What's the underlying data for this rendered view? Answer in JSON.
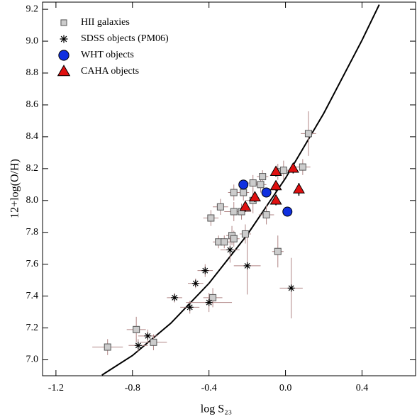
{
  "chart_data": {
    "type": "scatter",
    "xlabel": "log S₂₃",
    "ylabel": "12+log(O/H)",
    "xlim": [
      -1.27,
      0.68
    ],
    "ylim": [
      6.9,
      9.245
    ],
    "xticks": [
      -1.2,
      -0.8,
      -0.4,
      {
        "value": 0,
        "label": "0.0"
      },
      0.4
    ],
    "yticks": [
      {
        "value": 7,
        "label": "7.0"
      },
      7.2,
      7.4,
      7.6,
      7.8,
      {
        "value": 8,
        "label": "8.0"
      },
      8.2,
      8.4,
      8.6,
      8.8,
      {
        "value": 9,
        "label": "9.0"
      },
      9.2
    ],
    "legend": "upper left",
    "error_color": "#b08585",
    "curve": {
      "color": "#000000",
      "x": [
        -0.96,
        -0.8,
        -0.6,
        -0.4,
        -0.2,
        0,
        0.2,
        0.4,
        0.49
      ],
      "y": [
        6.904,
        7.027,
        7.229,
        7.48,
        7.785,
        8.14,
        8.547,
        9.006,
        9.229
      ]
    },
    "series": [
      {
        "name": "HII galaxies",
        "marker": "square",
        "color": "#cccccc",
        "x": [
          -0.93,
          -0.78,
          -0.69,
          -0.38,
          -0.39,
          -0.34,
          -0.35,
          -0.32,
          -0.27,
          -0.27,
          -0.28,
          -0.27,
          -0.22,
          -0.23,
          -0.21,
          -0.17,
          -0.17,
          -0.13,
          -0.12,
          -0.1,
          -0.04,
          -0.04,
          -0.01,
          0.09,
          0.12
        ],
        "y": [
          7.08,
          7.19,
          7.11,
          7.39,
          7.89,
          7.96,
          7.74,
          7.74,
          8.05,
          7.93,
          7.78,
          7.76,
          8.05,
          7.93,
          7.79,
          8.11,
          8.0,
          8.1,
          8.15,
          7.91,
          8.18,
          7.68,
          8.19,
          8.21,
          8.42
        ],
        "xerr": [
          0.08,
          0.05,
          0.07,
          0.05,
          0.04,
          0.04,
          0.03,
          0.03,
          0.03,
          0.05,
          0.03,
          0.03,
          0.03,
          0.05,
          0.03,
          0.03,
          0.04,
          0.03,
          0.03,
          0.04,
          0.03,
          0.03,
          0.03,
          0.04,
          0.04
        ],
        "yerr": [
          0.05,
          0.08,
          0.05,
          0.06,
          0.05,
          0.05,
          0.04,
          0.04,
          0.05,
          0.06,
          0.06,
          0.05,
          0.05,
          0.05,
          0.06,
          0.05,
          0.08,
          0.05,
          0.04,
          0.06,
          0.05,
          0.1,
          0.06,
          0.05,
          0.14
        ]
      },
      {
        "name": "SDSS objects (PM06)",
        "marker": "star",
        "color": "#000000",
        "x": [
          -0.77,
          -0.72,
          -0.58,
          -0.5,
          -0.47,
          -0.42,
          -0.4,
          -0.29,
          -0.2,
          0.03
        ],
        "y": [
          7.09,
          7.15,
          7.39,
          7.33,
          7.48,
          7.56,
          7.36,
          7.69,
          7.59,
          7.45
        ],
        "xerr": [
          0.05,
          0.05,
          0.04,
          0.05,
          0.04,
          0.04,
          0.12,
          0.05,
          0.07,
          0.06
        ],
        "yerr": [
          0.04,
          0.04,
          0.03,
          0.04,
          0.03,
          0.04,
          0.06,
          0.08,
          0.18,
          0.19
        ]
      },
      {
        "name": "WHT objects",
        "marker": "circle",
        "color": "#1030e0",
        "x": [
          -0.22,
          -0.1,
          0.01
        ],
        "y": [
          8.1,
          8.05,
          7.93
        ],
        "yerr": [
          0.03,
          0.03,
          0.02
        ]
      },
      {
        "name": "CAHA objects",
        "marker": "triangle",
        "color": "#e01010",
        "x": [
          -0.21,
          -0.16,
          -0.05,
          -0.05,
          -0.05,
          0.04,
          0.07
        ],
        "y": [
          7.96,
          8.02,
          8.0,
          8.18,
          8.09,
          8.2,
          8.07
        ],
        "yerr": [
          0.03,
          0.03,
          0.03,
          0.03,
          0.03,
          0.03,
          0.04
        ]
      }
    ]
  }
}
